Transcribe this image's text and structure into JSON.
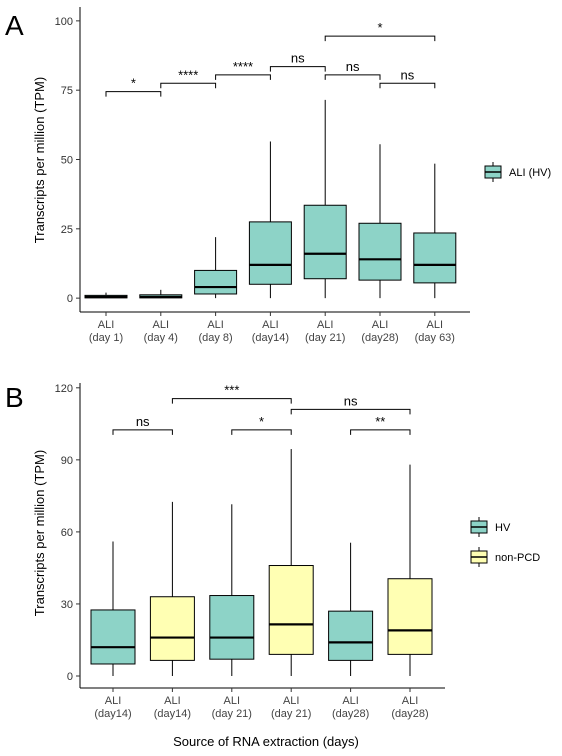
{
  "figure": {
    "colors": {
      "HV": "#8dd3c7",
      "non-PCD": "#ffffb3"
    }
  },
  "chart_data": [
    {
      "panel": "A",
      "type": "box",
      "ylabel": "Transcripts per million (TPM)",
      "xlabel": "",
      "ylim": [
        -5,
        105
      ],
      "yticks": [
        0,
        25,
        50,
        75,
        100
      ],
      "categories": [
        {
          "line1": "ALI",
          "line2": "(day 1)"
        },
        {
          "line1": "ALI",
          "line2": "(day 4)"
        },
        {
          "line1": "ALI",
          "line2": "(day 8)"
        },
        {
          "line1": "ALI",
          "line2": "(day14)"
        },
        {
          "line1": "ALI",
          "line2": "(day 21)"
        },
        {
          "line1": "ALI",
          "line2": "(day28)"
        },
        {
          "line1": "ALI",
          "line2": "(day 63)"
        }
      ],
      "legend": [
        {
          "label": "ALI (HV)",
          "group": "HV"
        }
      ],
      "boxes": [
        {
          "cat": 0,
          "group": "HV",
          "min": 0,
          "q1": 0.1,
          "median": 0.4,
          "q3": 1.0,
          "max": 2.0
        },
        {
          "cat": 1,
          "group": "HV",
          "min": 0,
          "q1": 0.1,
          "median": 0.4,
          "q3": 1.2,
          "max": 3.0
        },
        {
          "cat": 2,
          "group": "HV",
          "min": 0,
          "q1": 1.5,
          "median": 4.0,
          "q3": 10.0,
          "max": 22.0
        },
        {
          "cat": 3,
          "group": "HV",
          "min": 0,
          "q1": 5.0,
          "median": 12.0,
          "q3": 27.5,
          "max": 56.5
        },
        {
          "cat": 4,
          "group": "HV",
          "min": 0,
          "q1": 7.0,
          "median": 16.0,
          "q3": 33.5,
          "max": 71.5
        },
        {
          "cat": 5,
          "group": "HV",
          "min": 0,
          "q1": 6.5,
          "median": 14.0,
          "q3": 27.0,
          "max": 55.5
        },
        {
          "cat": 6,
          "group": "HV",
          "min": 0,
          "q1": 5.5,
          "median": 12.0,
          "q3": 23.5,
          "max": 48.5
        }
      ],
      "significance": [
        {
          "from": 0,
          "to": 1,
          "y": 74.5,
          "label": "*"
        },
        {
          "from": 1,
          "to": 2,
          "y": 77.5,
          "label": "****"
        },
        {
          "from": 2,
          "to": 3,
          "y": 80.5,
          "label": "****"
        },
        {
          "from": 3,
          "to": 4,
          "y": 83.5,
          "label": "ns"
        },
        {
          "from": 4,
          "to": 5,
          "y": 80.5,
          "label": "ns"
        },
        {
          "from": 5,
          "to": 6,
          "y": 77.5,
          "label": "ns"
        },
        {
          "from": 4,
          "to": 6,
          "y": 94.5,
          "label": "*"
        }
      ]
    },
    {
      "panel": "B",
      "type": "box",
      "ylabel": "Transcripts per million (TPM)",
      "xlabel": "Source of RNA extraction (days)",
      "ylim": [
        -5,
        122
      ],
      "yticks": [
        0,
        30,
        60,
        90,
        120
      ],
      "categories": [
        {
          "line1": "ALI",
          "line2": "(day14)"
        },
        {
          "line1": "ALI",
          "line2": "(day14)"
        },
        {
          "line1": "ALI",
          "line2": "(day 21)"
        },
        {
          "line1": "ALI",
          "line2": "(day 21)"
        },
        {
          "line1": "ALI",
          "line2": "(day28)"
        },
        {
          "line1": "ALI",
          "line2": "(day28)"
        }
      ],
      "legend": [
        {
          "label": "HV",
          "group": "HV"
        },
        {
          "label": "non-PCD",
          "group": "non-PCD"
        }
      ],
      "boxes": [
        {
          "cat": 0,
          "group": "HV",
          "min": 0,
          "q1": 5.0,
          "median": 12.0,
          "q3": 27.5,
          "max": 56.0
        },
        {
          "cat": 1,
          "group": "non-PCD",
          "min": 0,
          "q1": 6.5,
          "median": 16.0,
          "q3": 33.0,
          "max": 72.5
        },
        {
          "cat": 2,
          "group": "HV",
          "min": 0,
          "q1": 7.0,
          "median": 16.0,
          "q3": 33.5,
          "max": 71.5
        },
        {
          "cat": 3,
          "group": "non-PCD",
          "min": 0,
          "q1": 9.0,
          "median": 21.5,
          "q3": 46.0,
          "max": 94.5
        },
        {
          "cat": 4,
          "group": "HV",
          "min": 0,
          "q1": 6.5,
          "median": 14.0,
          "q3": 27.0,
          "max": 55.5
        },
        {
          "cat": 5,
          "group": "non-PCD",
          "min": 0,
          "q1": 9.0,
          "median": 19.0,
          "q3": 40.5,
          "max": 88.0
        }
      ],
      "significance": [
        {
          "from": 0,
          "to": 1,
          "y": 102.5,
          "label": "ns"
        },
        {
          "from": 1,
          "to": 3,
          "y": 115.5,
          "label": "***"
        },
        {
          "from": 2,
          "to": 3,
          "y": 102.5,
          "label": "*"
        },
        {
          "from": 3,
          "to": 5,
          "y": 111.0,
          "label": "ns"
        },
        {
          "from": 4,
          "to": 5,
          "y": 102.5,
          "label": "**"
        }
      ]
    }
  ]
}
